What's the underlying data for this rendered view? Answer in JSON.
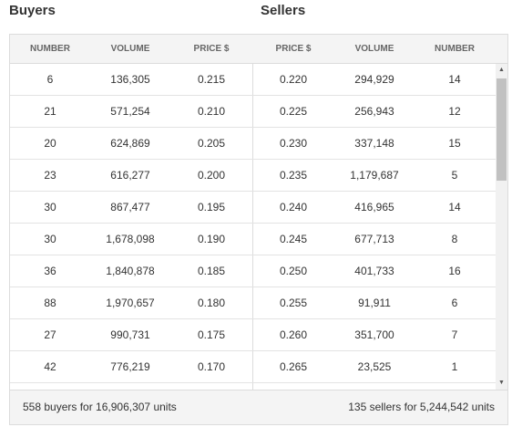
{
  "titles": {
    "buyers": "Buyers",
    "sellers": "Sellers"
  },
  "columns": [
    "NUMBER",
    "VOLUME",
    "PRICE $",
    "PRICE $",
    "VOLUME",
    "NUMBER"
  ],
  "rows": [
    [
      "6",
      "136,305",
      "0.215",
      "0.220",
      "294,929",
      "14"
    ],
    [
      "21",
      "571,254",
      "0.210",
      "0.225",
      "256,943",
      "12"
    ],
    [
      "20",
      "624,869",
      "0.205",
      "0.230",
      "337,148",
      "15"
    ],
    [
      "23",
      "616,277",
      "0.200",
      "0.235",
      "1,179,687",
      "5"
    ],
    [
      "30",
      "867,477",
      "0.195",
      "0.240",
      "416,965",
      "14"
    ],
    [
      "30",
      "1,678,098",
      "0.190",
      "0.245",
      "677,713",
      "8"
    ],
    [
      "36",
      "1,840,878",
      "0.185",
      "0.250",
      "401,733",
      "16"
    ],
    [
      "88",
      "1,970,657",
      "0.180",
      "0.255",
      "91,911",
      "6"
    ],
    [
      "27",
      "990,731",
      "0.175",
      "0.260",
      "351,700",
      "7"
    ],
    [
      "42",
      "776,219",
      "0.170",
      "0.265",
      "23,525",
      "1"
    ],
    [
      "",
      "",
      "",
      "",
      "",
      ""
    ]
  ],
  "footer": {
    "buyers_summary": "558 buyers for 16,906,307 units",
    "sellers_summary": "135 sellers for 5,244,542 units"
  },
  "scrollbar": {
    "up_icon": "▲",
    "down_icon": "▼"
  }
}
